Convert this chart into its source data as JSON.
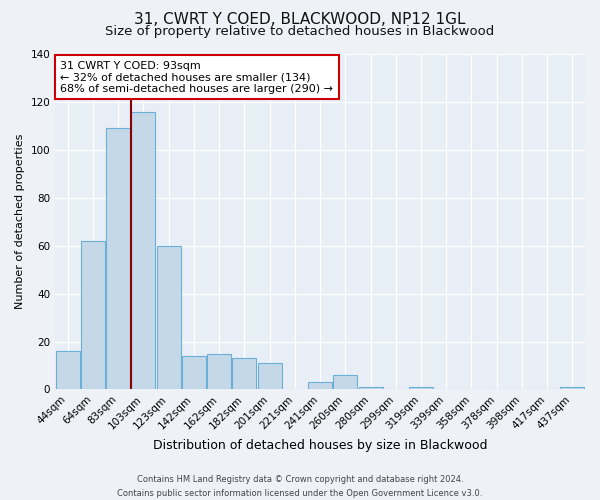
{
  "title": "31, CWRT Y COED, BLACKWOOD, NP12 1GL",
  "subtitle": "Size of property relative to detached houses in Blackwood",
  "xlabel": "Distribution of detached houses by size in Blackwood",
  "ylabel": "Number of detached properties",
  "categories": [
    "44sqm",
    "64sqm",
    "83sqm",
    "103sqm",
    "123sqm",
    "142sqm",
    "162sqm",
    "182sqm",
    "201sqm",
    "221sqm",
    "241sqm",
    "260sqm",
    "280sqm",
    "299sqm",
    "319sqm",
    "339sqm",
    "358sqm",
    "378sqm",
    "398sqm",
    "417sqm",
    "437sqm"
  ],
  "values": [
    16,
    62,
    109,
    116,
    60,
    14,
    15,
    13,
    11,
    0,
    3,
    6,
    1,
    0,
    1,
    0,
    0,
    0,
    0,
    0,
    1
  ],
  "bar_color": "#c5d8e8",
  "bar_edge_color": "#6aafd6",
  "vline_index": 2.5,
  "vline_color": "#8b0000",
  "annotation_box_text": "31 CWRT Y COED: 93sqm\n← 32% of detached houses are smaller (134)\n68% of semi-detached houses are larger (290) →",
  "annotation_box_color": "#ffffff",
  "annotation_box_edge_color": "#cc0000",
  "ylim": [
    0,
    140
  ],
  "yticks": [
    0,
    20,
    40,
    60,
    80,
    100,
    120,
    140
  ],
  "background_color": "#eef2f7",
  "plot_bg_color": "#e8eef5",
  "footer": "Contains HM Land Registry data © Crown copyright and database right 2024.\nContains public sector information licensed under the Open Government Licence v3.0.",
  "title_fontsize": 11,
  "subtitle_fontsize": 9.5,
  "xlabel_fontsize": 9,
  "ylabel_fontsize": 8,
  "tick_fontsize": 7.5,
  "annotation_fontsize": 8,
  "footer_fontsize": 6
}
